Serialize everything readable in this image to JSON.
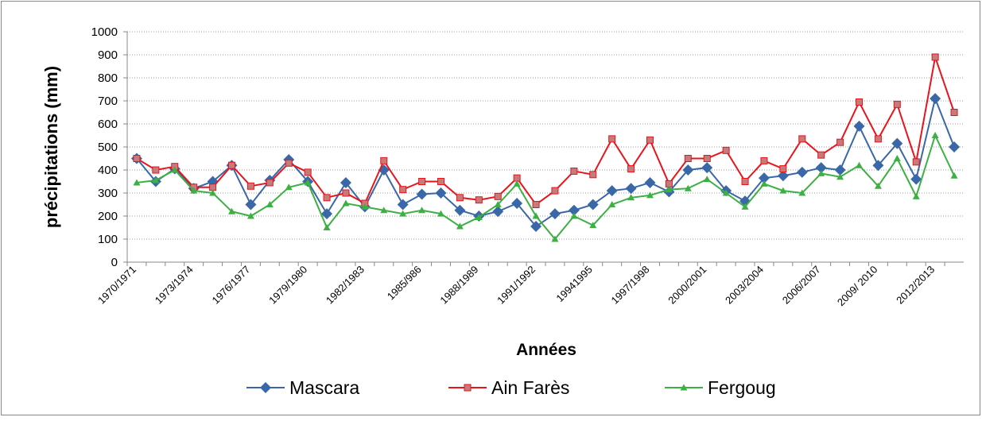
{
  "chart_data": {
    "type": "line",
    "y_label": "précipitations (mm)",
    "x_label": "Années",
    "categories": [
      "1970/1971",
      null,
      null,
      "1973/1974",
      null,
      null,
      "1976/1977",
      null,
      null,
      "1979/1980",
      null,
      null,
      "1982/1983",
      null,
      null,
      "1985/986",
      null,
      null,
      "1988/1989",
      null,
      null,
      "1991/1992",
      null,
      null,
      "19941995",
      null,
      null,
      "1997/1998",
      null,
      null,
      "2000/2001",
      null,
      null,
      "2003/2004",
      null,
      null,
      "2006/2007",
      null,
      null,
      "2009/ 2010",
      null,
      null,
      "2012/2013",
      null
    ],
    "series": [
      {
        "name": "Mascara",
        "color": "#3a67a8",
        "marker": "diamond",
        "values": [
          450,
          350,
          405,
          320,
          350,
          420,
          250,
          355,
          445,
          350,
          210,
          345,
          240,
          400,
          250,
          295,
          300,
          225,
          200,
          220,
          255,
          155,
          210,
          225,
          250,
          310,
          320,
          345,
          305,
          400,
          410,
          310,
          265,
          365,
          375,
          390,
          410,
          400,
          590,
          420,
          515,
          360,
          710,
          500
        ]
      },
      {
        "name": "Ain Farès",
        "color": "#e8141c",
        "marker": "square",
        "values": [
          450,
          400,
          415,
          325,
          325,
          420,
          330,
          345,
          430,
          390,
          280,
          300,
          255,
          440,
          315,
          350,
          350,
          280,
          270,
          285,
          365,
          250,
          310,
          395,
          380,
          535,
          405,
          530,
          340,
          450,
          450,
          485,
          350,
          440,
          405,
          535,
          465,
          520,
          695,
          535,
          685,
          435,
          890,
          650
        ]
      },
      {
        "name": "Fergoug",
        "color": "#3cb043",
        "marker": "triangle",
        "values": [
          345,
          355,
          400,
          310,
          300,
          220,
          200,
          250,
          325,
          345,
          150,
          255,
          240,
          225,
          210,
          225,
          210,
          155,
          195,
          250,
          340,
          200,
          100,
          200,
          160,
          250,
          280,
          290,
          315,
          320,
          360,
          300,
          240,
          340,
          310,
          300,
          385,
          370,
          420,
          330,
          450,
          285,
          550,
          375
        ]
      }
    ],
    "ylim": [
      0,
      1000
    ],
    "yticks": [
      0,
      100,
      200,
      300,
      400,
      500,
      600,
      700,
      800,
      900,
      1000
    ],
    "grid": true,
    "legend": "bottom"
  }
}
